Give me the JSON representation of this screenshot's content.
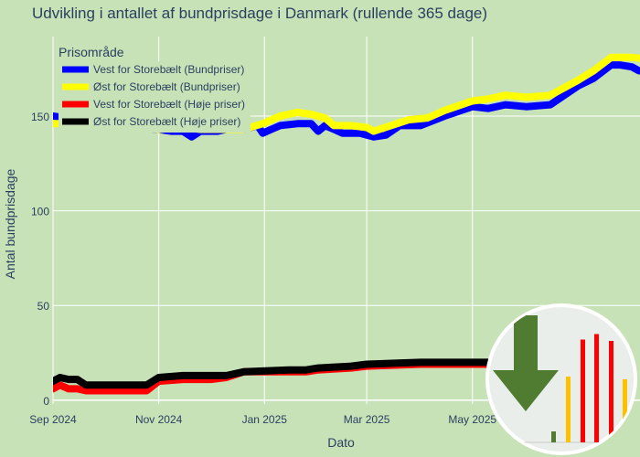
{
  "chart_data": {
    "type": "line",
    "title": "Udvikling i antallet af bundprisdage i Danmark (rullende 365 dage)",
    "xlabel": "Dato",
    "ylabel": "Antal bundprisdage",
    "xlim": [
      "2024-09-01",
      "2025-08-31"
    ],
    "ylim": [
      -2,
      192
    ],
    "x_ticks": [
      {
        "value": "2024-09-01",
        "label": "Sep 2024"
      },
      {
        "value": "2024-11-01",
        "label": "Nov 2024"
      },
      {
        "value": "2025-01-01",
        "label": "Jan 2025"
      },
      {
        "value": "2025-03-01",
        "label": "Mar 2025"
      },
      {
        "value": "2025-05-01",
        "label": "May 2025"
      }
    ],
    "y_ticks": [
      0,
      50,
      100,
      150
    ],
    "grid": true,
    "legend": {
      "title": "Prisområde",
      "placement": "top-left"
    },
    "series": [
      {
        "name": "Vest for Storebælt (Bundpriser)",
        "color": "#0000ff",
        "points": [
          [
            "2024-09-01",
            150
          ],
          [
            "2024-09-15",
            148
          ],
          [
            "2024-10-01",
            146
          ],
          [
            "2024-10-15",
            144
          ],
          [
            "2024-11-01",
            143
          ],
          [
            "2024-11-08",
            142
          ],
          [
            "2024-11-15",
            142
          ],
          [
            "2024-11-20",
            139
          ],
          [
            "2024-11-25",
            142
          ],
          [
            "2024-12-05",
            142
          ],
          [
            "2024-12-10",
            143
          ],
          [
            "2024-12-20",
            143
          ],
          [
            "2024-12-28",
            145
          ],
          [
            "2024-12-31",
            141
          ],
          [
            "2025-01-05",
            143
          ],
          [
            "2025-01-10",
            145
          ],
          [
            "2025-01-20",
            146
          ],
          [
            "2025-01-28",
            146
          ],
          [
            "2025-02-01",
            142
          ],
          [
            "2025-02-05",
            145
          ],
          [
            "2025-02-10",
            143
          ],
          [
            "2025-02-15",
            141
          ],
          [
            "2025-02-25",
            141
          ],
          [
            "2025-03-01",
            140
          ],
          [
            "2025-03-05",
            139
          ],
          [
            "2025-03-12",
            140
          ],
          [
            "2025-03-20",
            145
          ],
          [
            "2025-04-01",
            145
          ],
          [
            "2025-04-15",
            150
          ],
          [
            "2025-05-01",
            155
          ],
          [
            "2025-05-10",
            154
          ],
          [
            "2025-05-20",
            156
          ],
          [
            "2025-06-01",
            155
          ],
          [
            "2025-06-15",
            156
          ],
          [
            "2025-07-01",
            166
          ],
          [
            "2025-07-10",
            170
          ],
          [
            "2025-07-20",
            177
          ],
          [
            "2025-07-25",
            177
          ],
          [
            "2025-08-01",
            176
          ],
          [
            "2025-08-05",
            174
          ],
          [
            "2025-08-10",
            173
          ],
          [
            "2025-08-15",
            174
          ],
          [
            "2025-08-20",
            177
          ],
          [
            "2025-08-25",
            179
          ],
          [
            "2025-08-31",
            175
          ]
        ]
      },
      {
        "name": "Øst for Storebælt (Bundpriser)",
        "color": "#ffff00",
        "points": [
          [
            "2024-09-01",
            146
          ],
          [
            "2024-09-15",
            146
          ],
          [
            "2024-10-01",
            146
          ],
          [
            "2024-10-10",
            144
          ],
          [
            "2024-10-20",
            144
          ],
          [
            "2024-11-01",
            143
          ],
          [
            "2024-11-15",
            144
          ],
          [
            "2024-11-25",
            143
          ],
          [
            "2024-12-10",
            143
          ],
          [
            "2024-12-20",
            143
          ],
          [
            "2024-12-31",
            146
          ],
          [
            "2025-01-10",
            150
          ],
          [
            "2025-01-20",
            152
          ],
          [
            "2025-01-28",
            151
          ],
          [
            "2025-02-05",
            149
          ],
          [
            "2025-02-10",
            145
          ],
          [
            "2025-02-20",
            145
          ],
          [
            "2025-03-01",
            144
          ],
          [
            "2025-03-05",
            142
          ],
          [
            "2025-03-15",
            145
          ],
          [
            "2025-03-25",
            148
          ],
          [
            "2025-04-05",
            149
          ],
          [
            "2025-04-15",
            153
          ],
          [
            "2025-05-01",
            158
          ],
          [
            "2025-05-10",
            159
          ],
          [
            "2025-05-20",
            161
          ],
          [
            "2025-06-01",
            160
          ],
          [
            "2025-06-15",
            161
          ],
          [
            "2025-07-01",
            169
          ],
          [
            "2025-07-10",
            174
          ],
          [
            "2025-07-20",
            181
          ],
          [
            "2025-08-01",
            181
          ],
          [
            "2025-08-10",
            180
          ],
          [
            "2025-08-20",
            184
          ],
          [
            "2025-08-25",
            186
          ],
          [
            "2025-08-31",
            183
          ]
        ]
      },
      {
        "name": "Vest for Storebælt (Høje priser)",
        "color": "#ff0000",
        "points": [
          [
            "2024-09-01",
            6
          ],
          [
            "2024-09-05",
            8
          ],
          [
            "2024-09-10",
            6
          ],
          [
            "2024-09-15",
            6
          ],
          [
            "2024-09-20",
            5
          ],
          [
            "2024-10-01",
            5
          ],
          [
            "2024-10-15",
            5
          ],
          [
            "2024-10-25",
            5
          ],
          [
            "2024-11-01",
            10
          ],
          [
            "2024-11-15",
            11
          ],
          [
            "2024-12-01",
            11
          ],
          [
            "2024-12-10",
            12
          ],
          [
            "2024-12-20",
            15
          ],
          [
            "2025-01-15",
            15
          ],
          [
            "2025-01-25",
            15
          ],
          [
            "2025-02-01",
            16
          ],
          [
            "2025-02-20",
            17
          ],
          [
            "2025-03-01",
            18
          ],
          [
            "2025-04-01",
            19
          ],
          [
            "2025-05-01",
            19
          ],
          [
            "2025-06-01",
            19
          ],
          [
            "2025-07-01",
            19
          ]
        ]
      },
      {
        "name": "Øst for Storebælt (Høje priser)",
        "color": "#000000",
        "points": [
          [
            "2024-09-01",
            10
          ],
          [
            "2024-09-05",
            12
          ],
          [
            "2024-09-10",
            11
          ],
          [
            "2024-09-15",
            11
          ],
          [
            "2024-09-20",
            8
          ],
          [
            "2024-10-01",
            8
          ],
          [
            "2024-10-25",
            8
          ],
          [
            "2024-11-01",
            12
          ],
          [
            "2024-11-15",
            13
          ],
          [
            "2024-12-01",
            13
          ],
          [
            "2024-12-10",
            13
          ],
          [
            "2024-12-20",
            15
          ],
          [
            "2025-01-15",
            16
          ],
          [
            "2025-01-25",
            16
          ],
          [
            "2025-02-01",
            17
          ],
          [
            "2025-02-20",
            18
          ],
          [
            "2025-03-01",
            19
          ],
          [
            "2025-04-01",
            20
          ],
          [
            "2025-05-01",
            20
          ],
          [
            "2025-06-01",
            20
          ],
          [
            "2025-07-01",
            20
          ]
        ]
      }
    ]
  },
  "inset": {
    "arrow_color": "#507c32",
    "bars": [
      {
        "color": "#507c32",
        "value": 0.08
      },
      {
        "color": "#ffc000",
        "value": 0.48
      },
      {
        "color": "#ff0000",
        "value": 0.75
      },
      {
        "color": "#ff0000",
        "value": 0.79
      },
      {
        "color": "#ff0000",
        "value": 0.74
      },
      {
        "color": "#ffc000",
        "value": 0.46
      }
    ]
  }
}
